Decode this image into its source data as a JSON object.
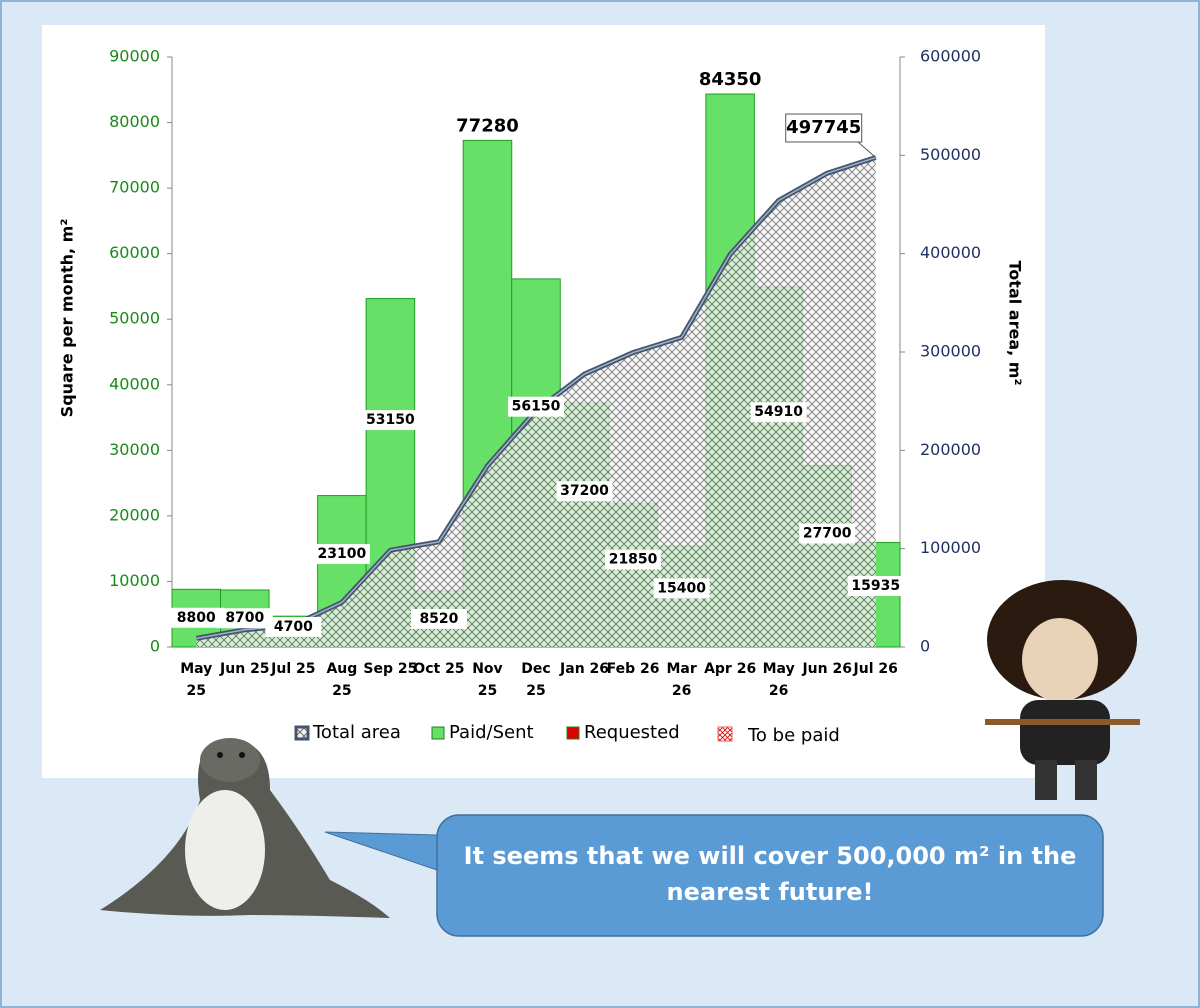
{
  "chart_data": {
    "type": "bar",
    "y_axis_label": "Square per month,  m²",
    "y2_axis_label": "Total area, m²",
    "categories": [
      "May 25",
      "Jun 25",
      "Jul 25",
      "Aug 25",
      "Sep 25",
      "Oct 25",
      "Nov 25",
      "Dec 25",
      "Jan 26",
      "Feb 26",
      "Mar 26",
      "Apr 26",
      "May 26",
      "Jun 26",
      "Jul 26"
    ],
    "series": [
      {
        "name": "Total area",
        "color": "#44546a",
        "axis": "y2",
        "values": [
          8800,
          17500,
          22200,
          45300,
          98450,
          106970,
          184250,
          240400,
          277600,
          299450,
          314850,
          399200,
          454110,
          481810,
          497745
        ]
      },
      {
        "name": "Paid/Sent",
        "color": "#66e066",
        "values": [
          8800,
          8700,
          4700,
          23100,
          53150,
          8520,
          77280,
          56150,
          37200,
          21850,
          15400,
          84350,
          54910,
          27700,
          15935
        ]
      },
      {
        "name": "Requested",
        "color": "#e00000",
        "values": [
          null,
          null,
          null,
          null,
          null,
          null,
          null,
          null,
          null,
          null,
          null,
          null,
          null,
          null,
          null
        ]
      },
      {
        "name": "To be paid",
        "color": "#e06060",
        "values": [
          null,
          null,
          null,
          null,
          null,
          null,
          null,
          null,
          null,
          null,
          null,
          null,
          null,
          null,
          null
        ]
      }
    ],
    "ylim": [
      0,
      90000
    ],
    "yticks": [
      0,
      10000,
      20000,
      30000,
      40000,
      50000,
      60000,
      70000,
      80000,
      90000
    ],
    "y2lim": [
      0,
      600000
    ],
    "y2ticks": [
      0,
      100000,
      200000,
      300000,
      400000,
      500000,
      600000
    ],
    "callout": "It seems that we will cover 500,000 m²  in the nearest future!"
  }
}
